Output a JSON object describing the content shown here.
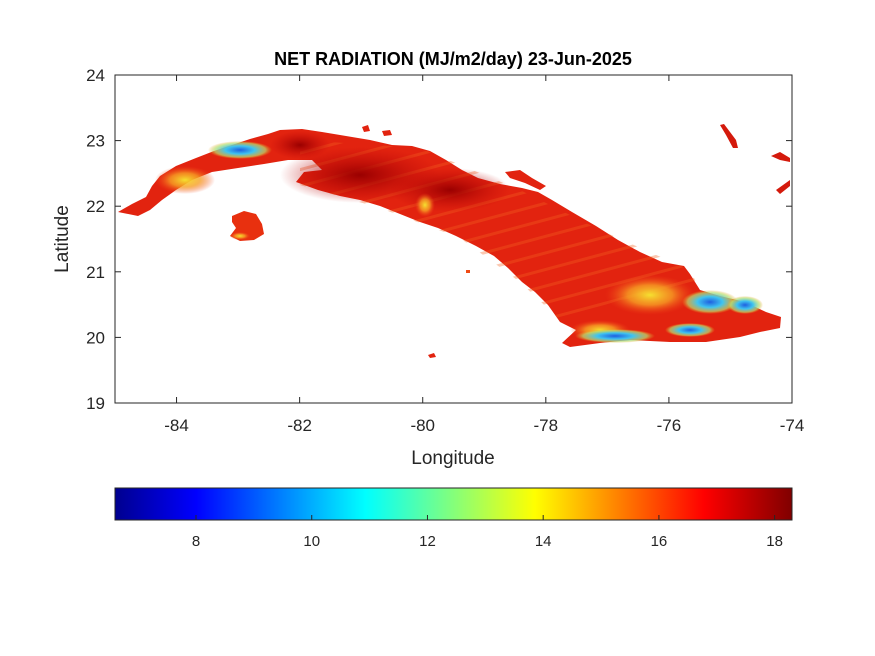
{
  "map": {
    "title": "NET RADIATION (MJ/m2/day) 23-Jun-2025",
    "x_axis_label": "Longitude",
    "y_axis_label": "Latitude",
    "x_ticks": [
      "-84",
      "-82",
      "-80",
      "-78",
      "-76",
      "-74"
    ],
    "y_ticks": [
      "24",
      "23",
      "22",
      "21",
      "20",
      "19"
    ],
    "x_range": [
      -85,
      -74
    ],
    "y_range": [
      19,
      24
    ],
    "region_shown": "Cuba",
    "colorbar": {
      "colormap": "jet",
      "range": [
        6.6,
        18.3
      ],
      "ticks": [
        "8",
        "10",
        "12",
        "14",
        "16",
        "18"
      ],
      "orientation": "horizontal",
      "placement": "below map"
    },
    "colors": {
      "dominant": "#e2230f",
      "high": "#a20000",
      "low_zones": "#33b6f0",
      "background": "#ffffff",
      "axes": "#262626"
    }
  }
}
